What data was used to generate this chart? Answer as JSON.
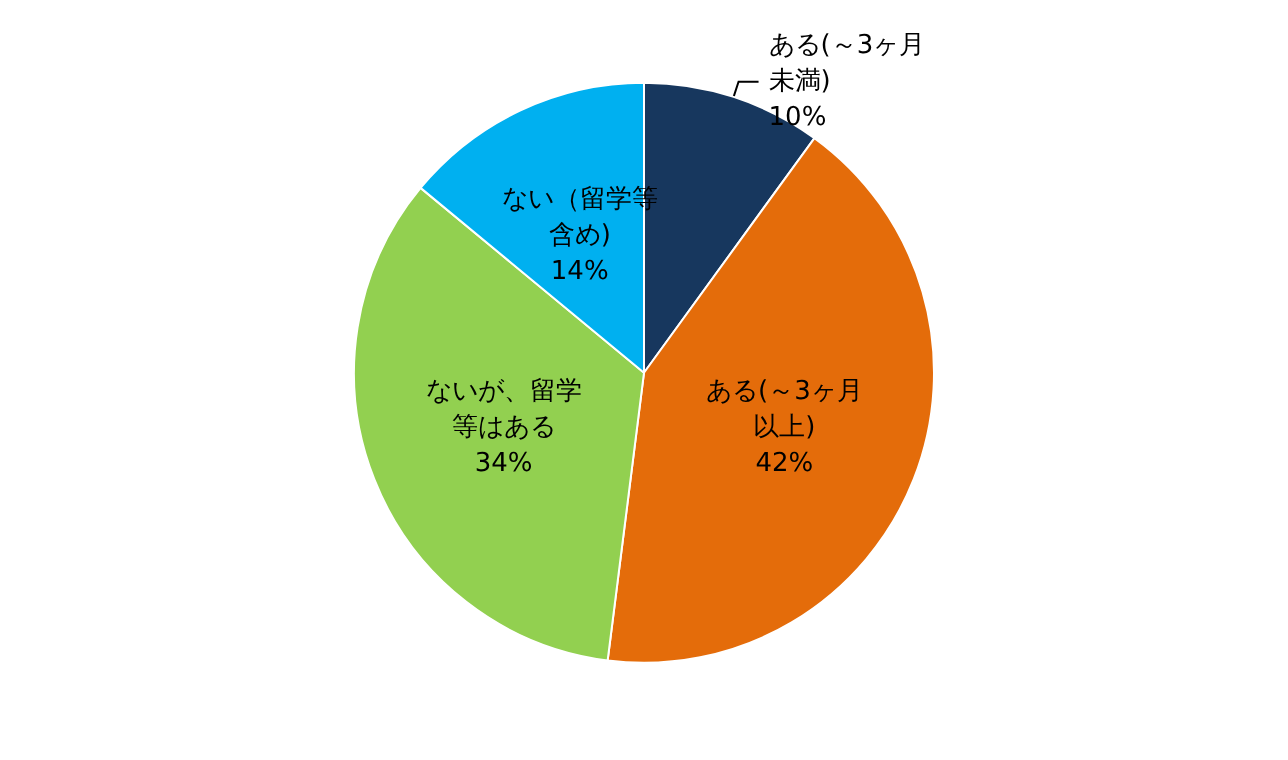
{
  "chart_data": {
    "type": "pie",
    "categories": [
      "ある(～3ヶ月未満)",
      "ある(～3ヶ月以上)",
      "ないが、留学等はある",
      "ない（留学等含め)"
    ],
    "values": [
      10,
      42,
      34,
      14
    ],
    "value_labels": [
      "10%",
      "42%",
      "34%",
      "14%"
    ],
    "colors": [
      "#17375e",
      "#e46c0a",
      "#92d050",
      "#00b0f0"
    ],
    "legend": false
  }
}
